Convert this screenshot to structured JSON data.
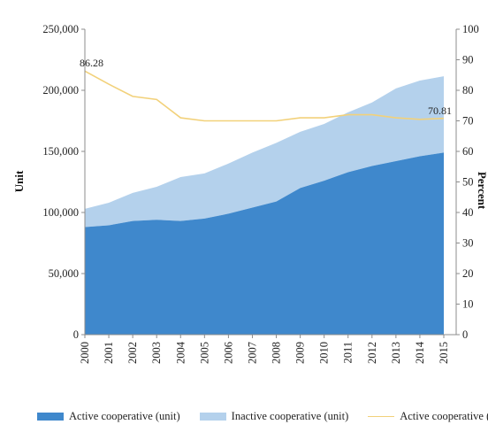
{
  "chart_data": {
    "type": "area",
    "x": [
      "2000",
      "2001",
      "2002",
      "2003",
      "2004",
      "2005",
      "2006",
      "2007",
      "2008",
      "2009",
      "2010",
      "2011",
      "2012",
      "2013",
      "2014",
      "2015"
    ],
    "series": [
      {
        "name": "Active cooperative (unit)",
        "kind": "area",
        "axis": "left",
        "color": "#3f88cc",
        "values": [
          88000,
          89500,
          93000,
          94000,
          93000,
          95000,
          99000,
          104000,
          109000,
          120000,
          126000,
          133000,
          138000,
          142000,
          146000,
          149000
        ]
      },
      {
        "name": "Inactive cooperative (unit)",
        "kind": "area-stacked",
        "axis": "left",
        "color": "#b4d1ec",
        "values": [
          15000,
          18500,
          23000,
          27000,
          36000,
          37000,
          41000,
          45000,
          48000,
          46000,
          46500,
          49000,
          52000,
          59500,
          62000,
          62500
        ]
      },
      {
        "name": "Active cooperative (%)",
        "kind": "line",
        "axis": "right",
        "color": "#f2d17a",
        "values": [
          86.28,
          82,
          78,
          77,
          71,
          70,
          70,
          70,
          70,
          71,
          71,
          72,
          72,
          71,
          70.5,
          70.81
        ]
      }
    ],
    "ylabel": "Unit",
    "y2label": "Percent",
    "ylim": [
      0,
      250000
    ],
    "y2lim": [
      0,
      100
    ],
    "yticks": [
      "0",
      "50,000",
      "100,000",
      "150,000",
      "200,000",
      "250,000"
    ],
    "y2ticks": [
      "0",
      "10",
      "20",
      "30",
      "40",
      "50",
      "60",
      "70",
      "80",
      "90",
      "100"
    ],
    "data_labels": [
      "86.28",
      "70.81"
    ],
    "legend_position": "bottom",
    "grid": false
  }
}
